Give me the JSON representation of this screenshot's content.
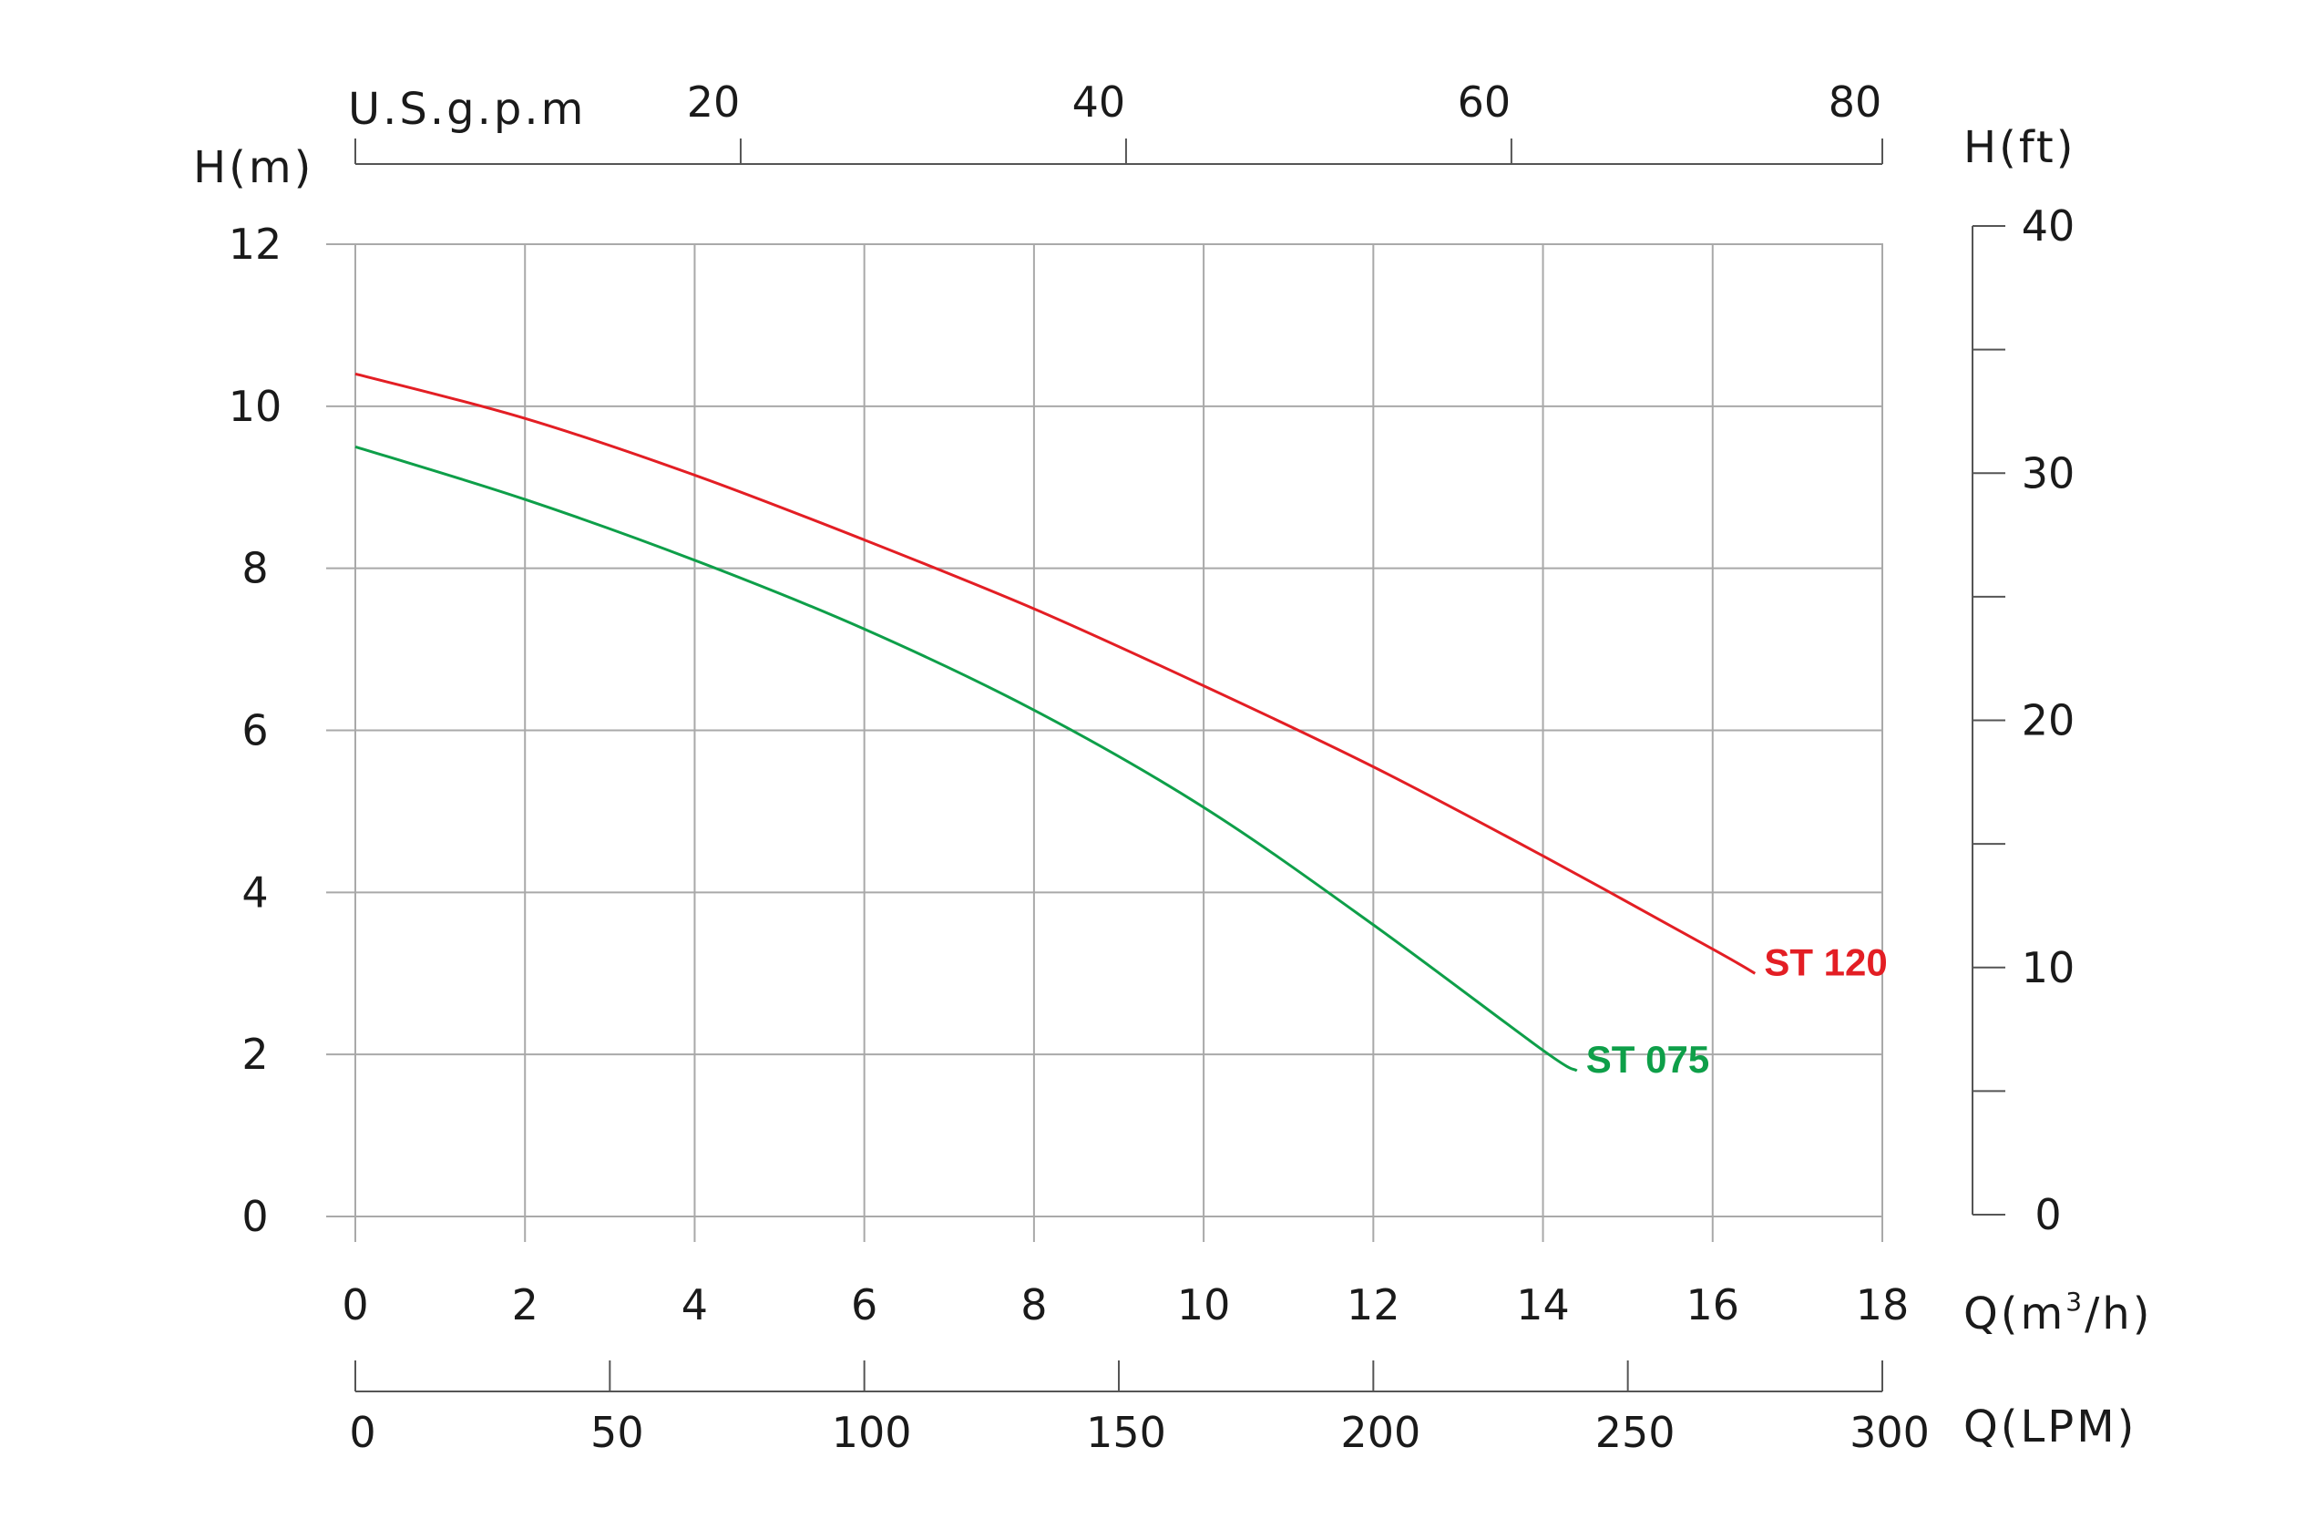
{
  "chart_data": {
    "type": "line",
    "title": "",
    "grid": true,
    "axes": {
      "x_m3h": {
        "label": "Q(m",
        "superscript": "3",
        "label_suffix": "/h)",
        "range": [
          0,
          18
        ],
        "ticks": [
          0,
          2,
          4,
          6,
          8,
          10,
          12,
          14,
          16,
          18
        ]
      },
      "x_lpm": {
        "label": "Q(LPM)",
        "range": [
          0,
          300
        ],
        "ticks": [
          0,
          50,
          100,
          150,
          200,
          250,
          300
        ]
      },
      "x_usgpm": {
        "label": "U.S.g.p.m",
        "range": [
          0,
          79.25
        ],
        "ticks": [
          20,
          40,
          60,
          80
        ]
      },
      "y_m": {
        "label": "H(m)",
        "range": [
          0,
          12
        ],
        "ticks": [
          0,
          2,
          4,
          6,
          8,
          10,
          12
        ]
      },
      "y_ft": {
        "label": "H(ft)",
        "range": [
          0,
          40
        ],
        "ticks": [
          0,
          10,
          20,
          30,
          40
        ],
        "minor_ticks": [
          5,
          15,
          25,
          35
        ]
      }
    },
    "series": [
      {
        "name": "ST 120",
        "color": "#e31e24",
        "x": [
          0,
          2,
          4,
          6,
          8,
          10,
          12,
          14,
          16,
          16.5
        ],
        "y": [
          10.4,
          9.85,
          9.15,
          8.35,
          7.5,
          6.55,
          5.55,
          4.45,
          3.3,
          3.0
        ]
      },
      {
        "name": "ST 075",
        "color": "#0e9f49",
        "x": [
          0,
          2,
          4,
          6,
          8,
          10,
          12,
          14,
          14.4
        ],
        "y": [
          9.5,
          8.85,
          8.1,
          7.25,
          6.25,
          5.05,
          3.6,
          2.05,
          1.8
        ]
      }
    ]
  }
}
